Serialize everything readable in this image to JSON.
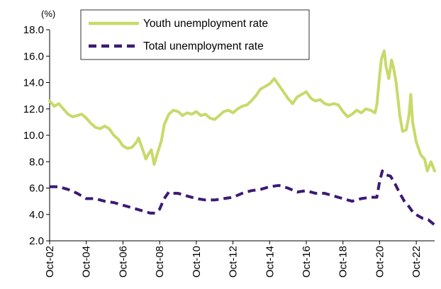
{
  "chart_data": {
    "type": "line",
    "title": "",
    "xlabel": "",
    "ylabel": "",
    "unit_label": "(%)",
    "ylim": [
      2.0,
      18.0
    ],
    "yticks": [
      "2.0",
      "4.0",
      "6.0",
      "8.0",
      "10.0",
      "12.0",
      "14.0",
      "16.0",
      "18.0"
    ],
    "xlim": [
      2002.75,
      2022.75
    ],
    "xticks": [
      "Oct-02",
      "Oct-04",
      "Oct-06",
      "Oct-08",
      "Oct-10",
      "Oct-12",
      "Oct-14",
      "Oct-16",
      "Oct-18",
      "Oct-20",
      "Oct-22"
    ],
    "legend": {
      "position": "top"
    },
    "grid": false,
    "series": [
      {
        "name": "Youth unemployment rate",
        "color": "#c9d96a",
        "style": "solid",
        "points": [
          [
            2002.75,
            12.6
          ],
          [
            2003.0,
            12.2
          ],
          [
            2003.25,
            12.4
          ],
          [
            2003.5,
            12.0
          ],
          [
            2003.75,
            11.6
          ],
          [
            2004.0,
            11.4
          ],
          [
            2004.25,
            11.5
          ],
          [
            2004.5,
            11.6
          ],
          [
            2004.75,
            11.3
          ],
          [
            2005.0,
            10.9
          ],
          [
            2005.25,
            10.6
          ],
          [
            2005.5,
            10.5
          ],
          [
            2005.75,
            10.7
          ],
          [
            2006.0,
            10.5
          ],
          [
            2006.25,
            10.0
          ],
          [
            2006.5,
            9.7
          ],
          [
            2006.75,
            9.2
          ],
          [
            2007.0,
            9.0
          ],
          [
            2007.25,
            9.1
          ],
          [
            2007.5,
            9.5
          ],
          [
            2007.6,
            9.8
          ],
          [
            2007.85,
            8.8
          ],
          [
            2008.0,
            8.2
          ],
          [
            2008.15,
            8.6
          ],
          [
            2008.3,
            8.9
          ],
          [
            2008.45,
            7.8
          ],
          [
            2008.6,
            8.5
          ],
          [
            2008.85,
            9.6
          ],
          [
            2009.0,
            10.8
          ],
          [
            2009.25,
            11.6
          ],
          [
            2009.5,
            11.9
          ],
          [
            2009.75,
            11.8
          ],
          [
            2010.0,
            11.5
          ],
          [
            2010.25,
            11.7
          ],
          [
            2010.5,
            11.6
          ],
          [
            2010.75,
            11.8
          ],
          [
            2011.0,
            11.5
          ],
          [
            2011.25,
            11.6
          ],
          [
            2011.5,
            11.3
          ],
          [
            2011.75,
            11.2
          ],
          [
            2012.0,
            11.5
          ],
          [
            2012.25,
            11.8
          ],
          [
            2012.5,
            11.9
          ],
          [
            2012.75,
            11.7
          ],
          [
            2013.0,
            12.0
          ],
          [
            2013.25,
            12.2
          ],
          [
            2013.5,
            12.3
          ],
          [
            2013.75,
            12.6
          ],
          [
            2014.0,
            13.0
          ],
          [
            2014.25,
            13.5
          ],
          [
            2014.5,
            13.7
          ],
          [
            2014.75,
            13.9
          ],
          [
            2015.0,
            14.3
          ],
          [
            2015.25,
            13.8
          ],
          [
            2015.5,
            13.3
          ],
          [
            2015.75,
            12.8
          ],
          [
            2016.0,
            12.4
          ],
          [
            2016.25,
            12.9
          ],
          [
            2016.5,
            13.1
          ],
          [
            2016.75,
            13.3
          ],
          [
            2017.0,
            12.8
          ],
          [
            2017.25,
            12.6
          ],
          [
            2017.5,
            12.7
          ],
          [
            2017.75,
            12.4
          ],
          [
            2018.0,
            12.3
          ],
          [
            2018.25,
            12.4
          ],
          [
            2018.5,
            12.3
          ],
          [
            2018.75,
            11.8
          ],
          [
            2019.0,
            11.4
          ],
          [
            2019.25,
            11.6
          ],
          [
            2019.5,
            11.9
          ],
          [
            2019.75,
            11.7
          ],
          [
            2020.0,
            12.0
          ],
          [
            2020.25,
            11.9
          ],
          [
            2020.5,
            11.7
          ],
          [
            2020.6,
            12.3
          ],
          [
            2020.75,
            14.5
          ],
          [
            2020.85,
            15.8
          ],
          [
            2021.0,
            16.4
          ],
          [
            2021.1,
            15.2
          ],
          [
            2021.25,
            14.3
          ],
          [
            2021.4,
            15.7
          ],
          [
            2021.5,
            15.2
          ],
          [
            2021.65,
            14.0
          ],
          [
            2021.85,
            11.5
          ],
          [
            2022.0,
            10.3
          ],
          [
            2022.2,
            10.4
          ],
          [
            2022.35,
            11.5
          ],
          [
            2022.45,
            13.1
          ],
          [
            2022.55,
            11.0
          ],
          [
            2022.75,
            9.5
          ],
          [
            2023.0,
            8.5
          ],
          [
            2023.2,
            8.2
          ],
          [
            2023.35,
            7.3
          ],
          [
            2023.55,
            8.0
          ],
          [
            2023.75,
            7.3
          ]
        ]
      },
      {
        "name": "Total unemployment rate",
        "color": "#3d1a73",
        "style": "dashed",
        "points": [
          [
            2002.75,
            6.1
          ],
          [
            2003.25,
            6.1
          ],
          [
            2003.75,
            5.9
          ],
          [
            2004.25,
            5.6
          ],
          [
            2004.75,
            5.2
          ],
          [
            2005.25,
            5.2
          ],
          [
            2005.75,
            5.0
          ],
          [
            2006.25,
            4.9
          ],
          [
            2006.75,
            4.7
          ],
          [
            2007.25,
            4.5
          ],
          [
            2007.75,
            4.3
          ],
          [
            2008.25,
            4.1
          ],
          [
            2008.5,
            4.1
          ],
          [
            2008.75,
            4.4
          ],
          [
            2009.0,
            5.2
          ],
          [
            2009.25,
            5.7
          ],
          [
            2009.5,
            5.6
          ],
          [
            2009.75,
            5.6
          ],
          [
            2010.25,
            5.4
          ],
          [
            2010.75,
            5.2
          ],
          [
            2011.25,
            5.1
          ],
          [
            2011.75,
            5.1
          ],
          [
            2012.25,
            5.2
          ],
          [
            2012.75,
            5.3
          ],
          [
            2013.25,
            5.6
          ],
          [
            2013.75,
            5.8
          ],
          [
            2014.25,
            5.9
          ],
          [
            2014.75,
            6.1
          ],
          [
            2015.25,
            6.2
          ],
          [
            2015.75,
            6.0
          ],
          [
            2016.25,
            5.7
          ],
          [
            2016.75,
            5.8
          ],
          [
            2017.25,
            5.6
          ],
          [
            2017.75,
            5.6
          ],
          [
            2018.25,
            5.4
          ],
          [
            2018.75,
            5.2
          ],
          [
            2019.25,
            5.0
          ],
          [
            2019.75,
            5.2
          ],
          [
            2020.25,
            5.3
          ],
          [
            2020.6,
            5.3
          ],
          [
            2020.75,
            6.5
          ],
          [
            2020.9,
            7.3
          ],
          [
            2021.1,
            7.0
          ],
          [
            2021.35,
            6.9
          ],
          [
            2021.6,
            6.3
          ],
          [
            2021.85,
            5.6
          ],
          [
            2022.1,
            5.0
          ],
          [
            2022.35,
            4.6
          ],
          [
            2022.6,
            4.1
          ],
          [
            2022.85,
            3.9
          ],
          [
            2023.1,
            3.7
          ],
          [
            2023.4,
            3.6
          ],
          [
            2023.75,
            3.2
          ]
        ]
      }
    ]
  }
}
